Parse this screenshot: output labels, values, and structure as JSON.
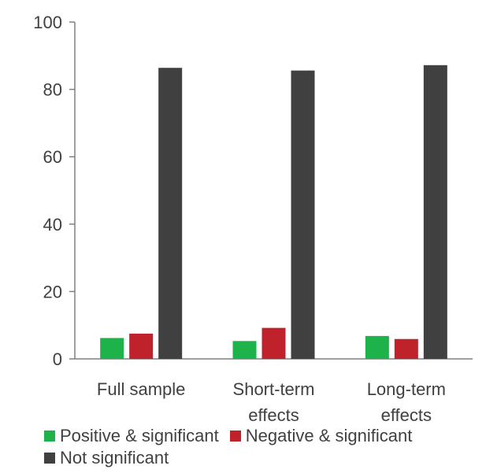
{
  "chart_data": {
    "type": "bar",
    "title": "",
    "xlabel": "",
    "ylabel": "",
    "categories": [
      [
        "Full sample"
      ],
      [
        "Short-term",
        "effects"
      ],
      [
        "Long-term",
        "effects"
      ]
    ],
    "series": [
      {
        "name": "Positive & significant",
        "color": "#1db34a",
        "values": [
          6.2,
          5.3,
          6.8
        ]
      },
      {
        "name": "Negative & significant",
        "color": "#c0222b",
        "values": [
          7.5,
          9.2,
          5.9
        ]
      },
      {
        "name": "Not significant",
        "color": "#404040",
        "values": [
          86.4,
          85.6,
          87.2
        ]
      }
    ],
    "ylim": [
      0,
      100
    ],
    "yticks": [
      0,
      20,
      40,
      60,
      80,
      100
    ],
    "grid": false,
    "legend_position": "bottom"
  }
}
